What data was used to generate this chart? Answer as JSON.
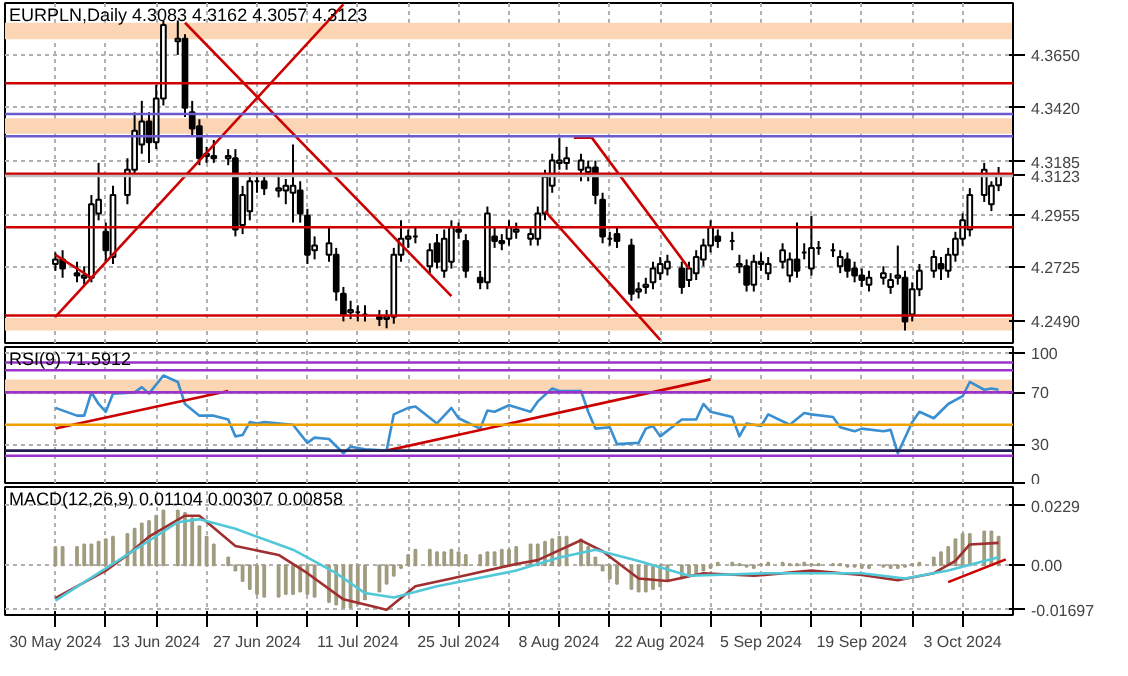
{
  "chart_data": [
    {
      "type": "candlestick",
      "title": "EURPLN,Daily  4.3083 4.3162 4.3057 4.3123",
      "tick_labels": "y",
      "grid": true,
      "x": [
        "2024-05-30",
        "2024-05-31",
        "2024-06-02",
        "2024-06-03",
        "2024-06-04",
        "2024-06-05",
        "2024-06-06",
        "2024-06-07",
        "2024-06-09",
        "2024-06-10",
        "2024-06-11",
        "2024-06-12",
        "2024-06-13",
        "2024-06-14",
        "2024-06-16",
        "2024-06-17",
        "2024-06-18",
        "2024-06-19",
        "2024-06-20",
        "2024-06-21",
        "2024-06-23",
        "2024-06-24",
        "2024-06-25",
        "2024-06-26",
        "2024-06-27",
        "2024-06-28",
        "2024-06-30",
        "2024-07-01",
        "2024-07-02",
        "2024-07-03",
        "2024-07-04",
        "2024-07-05",
        "2024-07-07",
        "2024-07-08",
        "2024-07-09",
        "2024-07-10",
        "2024-07-11",
        "2024-07-12",
        "2024-07-14",
        "2024-07-15",
        "2024-07-16",
        "2024-07-17",
        "2024-07-18",
        "2024-07-19",
        "2024-07-21",
        "2024-07-22",
        "2024-07-23",
        "2024-07-24",
        "2024-07-25",
        "2024-07-26",
        "2024-07-28",
        "2024-07-29",
        "2024-07-30",
        "2024-07-31",
        "2024-08-01",
        "2024-08-02",
        "2024-08-04",
        "2024-08-05",
        "2024-08-06",
        "2024-08-07",
        "2024-08-08",
        "2024-08-09",
        "2024-08-11",
        "2024-08-12",
        "2024-08-13",
        "2024-08-14",
        "2024-08-15",
        "2024-08-16",
        "2024-08-18",
        "2024-08-19",
        "2024-08-20",
        "2024-08-21",
        "2024-08-22",
        "2024-08-23",
        "2024-08-25",
        "2024-08-26",
        "2024-08-27",
        "2024-08-28",
        "2024-08-29",
        "2024-08-30",
        "2024-09-01",
        "2024-09-02",
        "2024-09-03",
        "2024-09-04",
        "2024-09-05",
        "2024-09-06",
        "2024-09-08",
        "2024-09-09",
        "2024-09-10",
        "2024-09-11",
        "2024-09-12",
        "2024-09-13",
        "2024-09-15",
        "2024-09-16",
        "2024-09-17",
        "2024-09-18",
        "2024-09-19",
        "2024-09-20",
        "2024-09-22",
        "2024-09-23",
        "2024-09-24",
        "2024-09-25",
        "2024-09-26",
        "2024-09-27",
        "2024-09-29",
        "2024-09-30",
        "2024-10-01",
        "2024-10-02",
        "2024-10-03",
        "2024-10-04",
        "2024-10-06",
        "2024-10-07",
        "2024-10-08"
      ],
      "ohlc": [
        [
          4.274,
          4.279,
          4.271,
          4.276
        ],
        [
          4.276,
          4.28,
          4.268,
          4.272
        ],
        [
          4.27,
          4.275,
          4.266,
          4.269
        ],
        [
          4.268,
          4.273,
          4.265,
          4.269
        ],
        [
          4.268,
          4.304,
          4.266,
          4.3
        ],
        [
          4.296,
          4.318,
          4.293,
          4.302
        ],
        [
          4.288,
          4.292,
          4.275,
          4.28
        ],
        [
          4.277,
          4.308,
          4.274,
          4.304
        ],
        [
          4.304,
          4.32,
          4.3,
          4.315
        ],
        [
          4.315,
          4.34,
          4.312,
          4.332
        ],
        [
          4.326,
          4.345,
          4.322,
          4.336
        ],
        [
          4.336,
          4.34,
          4.318,
          4.327
        ],
        [
          4.327,
          4.352,
          4.324,
          4.346
        ],
        [
          4.346,
          4.38,
          4.343,
          4.378
        ],
        [
          4.371,
          4.38,
          4.365,
          4.372
        ],
        [
          4.372,
          4.374,
          4.338,
          4.342
        ],
        [
          4.34,
          4.345,
          4.33,
          4.333
        ],
        [
          4.334,
          4.337,
          4.317,
          4.32
        ],
        [
          4.321,
          4.325,
          4.318,
          4.322
        ],
        [
          4.321,
          4.328,
          4.318,
          4.32
        ],
        [
          4.32,
          4.324,
          4.317,
          4.321
        ],
        [
          4.32,
          4.324,
          4.286,
          4.289
        ],
        [
          4.291,
          4.308,
          4.287,
          4.304
        ],
        [
          4.297,
          4.314,
          4.293,
          4.31
        ],
        [
          4.31,
          4.313,
          4.305,
          4.31
        ],
        [
          4.31,
          4.313,
          4.304,
          4.307
        ],
        [
          4.306,
          4.312,
          4.303,
          4.307
        ],
        [
          4.306,
          4.311,
          4.3,
          4.308
        ],
        [
          4.305,
          4.326,
          4.292,
          4.308
        ],
        [
          4.306,
          4.31,
          4.292,
          4.296
        ],
        [
          4.295,
          4.298,
          4.274,
          4.278
        ],
        [
          4.28,
          4.286,
          4.276,
          4.282
        ],
        [
          4.278,
          4.29,
          4.275,
          4.283
        ],
        [
          4.278,
          4.281,
          4.258,
          4.262
        ],
        [
          4.261,
          4.264,
          4.249,
          4.252
        ],
        [
          4.253,
          4.258,
          4.25,
          4.254
        ],
        [
          4.253,
          4.256,
          4.249,
          4.253
        ],
        [
          4.252,
          4.256,
          4.249,
          4.252
        ],
        [
          4.251,
          4.254,
          4.247,
          4.25
        ],
        [
          4.25,
          4.254,
          4.246,
          4.251
        ],
        [
          4.251,
          4.281,
          4.248,
          4.278
        ],
        [
          4.278,
          4.293,
          4.275,
          4.285
        ],
        [
          4.285,
          4.289,
          4.281,
          4.286
        ],
        [
          4.286,
          4.29,
          4.283,
          4.286
        ],
        [
          4.273,
          4.283,
          4.27,
          4.28
        ],
        [
          4.283,
          4.287,
          4.272,
          4.275
        ],
        [
          4.271,
          4.289,
          4.268,
          4.285
        ],
        [
          4.275,
          4.293,
          4.272,
          4.29
        ],
        [
          4.289,
          4.292,
          4.285,
          4.288
        ],
        [
          4.284,
          4.287,
          4.268,
          4.271
        ],
        [
          4.268,
          4.271,
          4.263,
          4.266
        ],
        [
          4.266,
          4.299,
          4.263,
          4.296
        ],
        [
          4.286,
          4.29,
          4.281,
          4.284
        ],
        [
          4.284,
          4.287,
          4.28,
          4.283
        ],
        [
          4.285,
          4.293,
          4.282,
          4.29
        ],
        [
          4.288,
          4.292,
          4.285,
          4.289
        ],
        [
          4.285,
          4.29,
          4.282,
          4.287
        ],
        [
          4.285,
          4.299,
          4.282,
          4.296
        ],
        [
          4.296,
          4.315,
          4.293,
          4.312
        ],
        [
          4.308,
          4.322,
          4.305,
          4.319
        ],
        [
          4.318,
          4.329,
          4.315,
          4.319
        ],
        [
          4.318,
          4.325,
          4.315,
          4.32
        ],
        [
          4.315,
          4.322,
          4.31,
          4.319
        ],
        [
          4.314,
          4.319,
          4.31,
          4.316
        ],
        [
          4.316,
          4.319,
          4.3,
          4.304
        ],
        [
          4.302,
          4.305,
          4.283,
          4.286
        ],
        [
          4.285,
          4.288,
          4.282,
          4.285
        ],
        [
          4.287,
          4.29,
          4.281,
          4.284
        ],
        [
          4.282,
          4.285,
          4.258,
          4.261
        ],
        [
          4.262,
          4.266,
          4.259,
          4.263
        ],
        [
          4.264,
          4.268,
          4.261,
          4.265
        ],
        [
          4.266,
          4.275,
          4.263,
          4.272
        ],
        [
          4.27,
          4.277,
          4.267,
          4.274
        ],
        [
          4.272,
          4.278,
          4.269,
          4.275
        ],
        [
          4.272,
          4.275,
          4.261,
          4.264
        ],
        [
          4.267,
          4.275,
          4.264,
          4.272
        ],
        [
          4.27,
          4.28,
          4.267,
          4.277
        ],
        [
          4.276,
          4.285,
          4.273,
          4.282
        ],
        [
          4.282,
          4.293,
          4.279,
          4.29
        ],
        [
          4.286,
          4.289,
          4.281,
          4.284
        ],
        [
          4.284,
          4.288,
          4.28,
          4.284
        ],
        [
          4.273,
          4.278,
          4.27,
          4.274
        ],
        [
          4.273,
          4.276,
          4.262,
          4.265
        ],
        [
          4.265,
          4.278,
          4.262,
          4.275
        ],
        [
          4.274,
          4.279,
          4.271,
          4.275
        ],
        [
          4.27,
          4.277,
          4.267,
          4.274
        ],
        [
          4.275,
          4.283,
          4.272,
          4.28
        ],
        [
          4.269,
          4.279,
          4.266,
          4.276
        ],
        [
          4.276,
          4.292,
          4.268,
          4.271
        ],
        [
          4.279,
          4.283,
          4.276,
          4.279
        ],
        [
          4.272,
          4.295,
          4.269,
          4.281
        ],
        [
          4.281,
          4.284,
          4.278,
          4.281
        ],
        [
          4.28,
          4.283,
          4.277,
          4.28
        ],
        [
          4.273,
          4.28,
          4.27,
          4.277
        ],
        [
          4.276,
          4.279,
          4.268,
          4.271
        ],
        [
          4.272,
          4.275,
          4.266,
          4.269
        ],
        [
          4.269,
          4.272,
          4.264,
          4.267
        ],
        [
          4.265,
          4.271,
          4.262,
          4.268
        ],
        [
          4.268,
          4.273,
          4.265,
          4.27
        ],
        [
          4.264,
          4.27,
          4.261,
          4.267
        ],
        [
          4.268,
          4.282,
          4.265,
          4.269
        ],
        [
          4.268,
          4.271,
          4.245,
          4.249
        ],
        [
          4.252,
          4.266,
          4.249,
          4.263
        ],
        [
          4.263,
          4.274,
          4.26,
          4.271
        ],
        [
          4.271,
          4.28,
          4.268,
          4.277
        ],
        [
          4.274,
          4.277,
          4.267,
          4.272
        ],
        [
          4.271,
          4.281,
          4.268,
          4.278
        ],
        [
          4.278,
          4.288,
          4.275,
          4.285
        ],
        [
          4.285,
          4.296,
          4.282,
          4.293
        ],
        [
          4.289,
          4.307,
          4.286,
          4.304
        ],
        [
          4.304,
          4.318,
          4.301,
          4.315
        ],
        [
          4.3,
          4.31,
          4.297,
          4.308
        ],
        [
          4.3083,
          4.3162,
          4.3057,
          4.3123
        ]
      ],
      "series": [
        {
          "type": "line",
          "color": "#cc0000",
          "x": [
            "2024-05-30",
            "2024-07-09"
          ],
          "values": [
            4.251,
            4.387
          ]
        },
        {
          "type": "line",
          "color": "#cc0000",
          "x": [
            "2024-06-17",
            "2024-07-24"
          ],
          "values": [
            4.379,
            4.26
          ]
        },
        {
          "type": "line",
          "color": "#cc0000",
          "x": [
            "2024-05-30",
            "2024-06-04"
          ],
          "values": [
            4.278,
            4.268
          ]
        },
        {
          "type": "line",
          "color": "#cc0000",
          "x": [
            "2024-08-10",
            "2024-08-12T12:00",
            "2024-08-26"
          ],
          "values": [
            4.329,
            4.329,
            4.272
          ]
        },
        {
          "type": "line",
          "color": "#cc0000",
          "x": [
            "2024-08-06",
            "2024-08-22"
          ],
          "values": [
            4.297,
            4.241
          ]
        }
      ],
      "xlim": [
        "2024-05-23",
        "2024-10-10"
      ],
      "xticks": [
        "2024-05-30",
        "2024-06-06",
        "2024-06-13",
        "2024-06-20",
        "2024-06-27",
        "2024-07-04",
        "2024-07-11",
        "2024-07-18",
        "2024-07-25",
        "2024-08-01",
        "2024-08-08",
        "2024-08-15",
        "2024-08-22",
        "2024-08-29",
        "2024-09-05",
        "2024-09-12",
        "2024-09-19",
        "2024-09-26",
        "2024-10-03"
      ],
      "ylim": [
        4.2396,
        4.3876
      ],
      "yticks": [
        {
          "value": 4.249,
          "label": "4.2490"
        },
        {
          "value": 4.2725,
          "label": "4.2725"
        },
        {
          "value": 4.2955,
          "label": "4.2955"
        },
        {
          "value": 4.3185,
          "label": "4.3185"
        },
        {
          "value": 4.342,
          "label": "4.3420"
        },
        {
          "value": 4.365,
          "label": "4.3650"
        }
      ],
      "ref_lines": [
        {
          "axis": "y",
          "value": 4.3527,
          "color": "#cc0000"
        },
        {
          "axis": "y",
          "value": 4.3393,
          "color": "#6a5acd"
        },
        {
          "axis": "y",
          "value": 4.3296,
          "color": "#6a5acd"
        },
        {
          "axis": "y",
          "value": 4.3132,
          "color": "#cc0000"
        },
        {
          "axis": "y",
          "value": 4.29,
          "color": "#cc0000"
        },
        {
          "axis": "y",
          "value": 4.2516,
          "color": "#cc0000"
        },
        {
          "axis": "y",
          "value": 4.3123,
          "label": "4.3123",
          "color": "#c0c0c0"
        }
      ],
      "bands": [
        {
          "axis": "y",
          "from": 4.3718,
          "to": 4.379,
          "color": "#fcd5b4"
        },
        {
          "axis": "y",
          "from": 4.3307,
          "to": 4.3374,
          "color": "#fcd5b4"
        },
        {
          "axis": "y",
          "from": 4.245,
          "to": 4.2505,
          "color": "#fcd5b4"
        }
      ]
    },
    {
      "type": "line",
      "title": "RSI(9) 71.5912",
      "tick_labels": "y",
      "grid": true,
      "series": [
        {
          "color": "#3a8fd0",
          "x": [
            "2024-05-30",
            "2024-06-02",
            "2024-06-03",
            "2024-06-04",
            "2024-06-05",
            "2024-06-06",
            "2024-06-07",
            "2024-06-10",
            "2024-06-11",
            "2024-06-12",
            "2024-06-14",
            "2024-06-16",
            "2024-06-17",
            "2024-06-19",
            "2024-06-21",
            "2024-06-23",
            "2024-06-24",
            "2024-06-25",
            "2024-06-26",
            "2024-06-27",
            "2024-06-28",
            "2024-07-02",
            "2024-07-04",
            "2024-07-05",
            "2024-07-07",
            "2024-07-09",
            "2024-07-10",
            "2024-07-12",
            "2024-07-15",
            "2024-07-16",
            "2024-07-18",
            "2024-07-19",
            "2024-07-22",
            "2024-07-24",
            "2024-07-25",
            "2024-07-28",
            "2024-07-29",
            "2024-07-30",
            "2024-08-01",
            "2024-08-04",
            "2024-08-05",
            "2024-08-07",
            "2024-08-08",
            "2024-08-11",
            "2024-08-12",
            "2024-08-13",
            "2024-08-15",
            "2024-08-16",
            "2024-08-19",
            "2024-08-20",
            "2024-08-21",
            "2024-08-22",
            "2024-08-25",
            "2024-08-27",
            "2024-08-28",
            "2024-08-29",
            "2024-09-01",
            "2024-09-02",
            "2024-09-03",
            "2024-09-05",
            "2024-09-06",
            "2024-09-09",
            "2024-09-11",
            "2024-09-12",
            "2024-09-15",
            "2024-09-16",
            "2024-09-18",
            "2024-09-19",
            "2024-09-22",
            "2024-09-23",
            "2024-09-24",
            "2024-09-26",
            "2024-09-27",
            "2024-09-29",
            "2024-10-01",
            "2024-10-03",
            "2024-10-04",
            "2024-10-06",
            "2024-10-07",
            "2024-10-08"
          ],
          "values": [
            58,
            52,
            52,
            70,
            61,
            55,
            69,
            70,
            74,
            69,
            83,
            78,
            61,
            52,
            52,
            49,
            36,
            37,
            47,
            46,
            47,
            45,
            31,
            35,
            34,
            23,
            28,
            26,
            25,
            53,
            58,
            59,
            46,
            58,
            50,
            42,
            56,
            55,
            60,
            55,
            63,
            73,
            71,
            71,
            55,
            42,
            43,
            30,
            31,
            42,
            44,
            36,
            49,
            49,
            61,
            55,
            51,
            36,
            46,
            44,
            53,
            45,
            54,
            53,
            51,
            43,
            40,
            42,
            40,
            41,
            23,
            47,
            55,
            50,
            61,
            67,
            78,
            72,
            73,
            72
          ]
        },
        {
          "color": "#cc0000",
          "x": [
            "2024-05-30",
            "2024-06-23"
          ],
          "values": [
            42,
            71
          ]
        },
        {
          "color": "#cc0000",
          "x": [
            "2024-07-15",
            "2024-08-29"
          ],
          "values": [
            25,
            80
          ]
        }
      ],
      "xlim": [
        "2024-05-23",
        "2024-10-10"
      ],
      "xticks": [
        "2024-05-30",
        "2024-06-06",
        "2024-06-13",
        "2024-06-20",
        "2024-06-27",
        "2024-07-04",
        "2024-07-11",
        "2024-07-18",
        "2024-07-25",
        "2024-08-01",
        "2024-08-08",
        "2024-08-15",
        "2024-08-22",
        "2024-08-29",
        "2024-09-05",
        "2024-09-12",
        "2024-09-19",
        "2024-09-26",
        "2024-10-03"
      ],
      "ylim": [
        0,
        105
      ],
      "yticks": [
        0,
        30,
        70,
        100
      ],
      "ref_lines": [
        {
          "axis": "y",
          "value": 93,
          "color": "#9933cc"
        },
        {
          "axis": "y",
          "value": 87,
          "color": "#9933cc"
        },
        {
          "axis": "y",
          "value": 70,
          "color": "#9933cc"
        },
        {
          "axis": "y",
          "value": 45,
          "color": "#f0a000"
        },
        {
          "axis": "y",
          "value": 25,
          "color": "#202050"
        },
        {
          "axis": "y",
          "value": 21,
          "color": "#9933cc"
        }
      ],
      "bands": [
        {
          "axis": "y",
          "from": 71,
          "to": 80,
          "color": "#fcd5b4"
        }
      ]
    },
    {
      "type": "bar",
      "title": "MACD(12,26,9) 0.01104 0.00307 0.00858",
      "grid": true,
      "x": [
        "2024-05-30",
        "2024-05-31",
        "2024-06-02",
        "2024-06-03",
        "2024-06-04",
        "2024-06-05",
        "2024-06-06",
        "2024-06-07",
        "2024-06-09",
        "2024-06-10",
        "2024-06-11",
        "2024-06-12",
        "2024-06-13",
        "2024-06-14",
        "2024-06-16",
        "2024-06-17",
        "2024-06-18",
        "2024-06-19",
        "2024-06-20",
        "2024-06-21",
        "2024-06-23",
        "2024-06-24",
        "2024-06-25",
        "2024-06-26",
        "2024-06-27",
        "2024-06-28",
        "2024-06-30",
        "2024-07-01",
        "2024-07-02",
        "2024-07-03",
        "2024-07-04",
        "2024-07-05",
        "2024-07-07",
        "2024-07-08",
        "2024-07-09",
        "2024-07-10",
        "2024-07-11",
        "2024-07-12",
        "2024-07-14",
        "2024-07-15",
        "2024-07-16",
        "2024-07-17",
        "2024-07-18",
        "2024-07-19",
        "2024-07-21",
        "2024-07-22",
        "2024-07-23",
        "2024-07-24",
        "2024-07-25",
        "2024-07-26",
        "2024-07-28",
        "2024-07-29",
        "2024-07-30",
        "2024-07-31",
        "2024-08-01",
        "2024-08-02",
        "2024-08-04",
        "2024-08-05",
        "2024-08-06",
        "2024-08-07",
        "2024-08-08",
        "2024-08-09",
        "2024-08-11",
        "2024-08-12",
        "2024-08-13",
        "2024-08-14",
        "2024-08-15",
        "2024-08-16",
        "2024-08-18",
        "2024-08-19",
        "2024-08-20",
        "2024-08-21",
        "2024-08-22",
        "2024-08-23",
        "2024-08-25",
        "2024-08-26",
        "2024-08-27",
        "2024-08-28",
        "2024-08-29",
        "2024-08-30",
        "2024-09-01",
        "2024-09-02",
        "2024-09-03",
        "2024-09-04",
        "2024-09-05",
        "2024-09-06",
        "2024-09-08",
        "2024-09-09",
        "2024-09-10",
        "2024-09-11",
        "2024-09-12",
        "2024-09-13",
        "2024-09-15",
        "2024-09-16",
        "2024-09-17",
        "2024-09-18",
        "2024-09-19",
        "2024-09-20",
        "2024-09-22",
        "2024-09-23",
        "2024-09-24",
        "2024-09-25",
        "2024-09-26",
        "2024-09-27",
        "2024-09-29",
        "2024-09-30",
        "2024-10-01",
        "2024-10-02",
        "2024-10-03",
        "2024-10-04",
        "2024-10-06",
        "2024-10-07",
        "2024-10-08"
      ],
      "series": [
        {
          "type": "bar",
          "color": "#a09c80",
          "values": [
            0.007,
            0.007,
            0.007,
            0.008,
            0.008,
            0.009,
            0.01,
            0.011,
            0.012,
            0.014,
            0.016,
            0.017,
            0.019,
            0.021,
            0.021,
            0.02,
            0.018,
            0.015,
            0.011,
            0.008,
            0.003,
            -0.002,
            -0.006,
            -0.009,
            -0.011,
            -0.012,
            -0.012,
            -0.011,
            -0.011,
            -0.01,
            -0.011,
            -0.012,
            -0.014,
            -0.015,
            -0.016,
            -0.016,
            -0.015,
            -0.013,
            -0.01,
            -0.007,
            -0.004,
            -0.001,
            0.004,
            0.006,
            0.006,
            0.005,
            0.005,
            0.006,
            0.005,
            0.004,
            0.004,
            0.005,
            0.005,
            0.006,
            0.006,
            0.007,
            0.008,
            0.008,
            0.009,
            0.01,
            0.011,
            0.011,
            0.01,
            0.007,
            0.003,
            -0.002,
            -0.005,
            -0.007,
            -0.009,
            -0.01,
            -0.01,
            -0.009,
            -0.008,
            -0.006,
            -0.005,
            -0.004,
            -0.003,
            -0.002,
            -0.001,
            0.001,
            0.001,
            0.0005,
            -0.0005,
            -0.001,
            0.0005,
            0.001,
            0.001,
            0.0005,
            0.0005,
            0.001,
            0.0005,
            0.0005,
            0.0005,
            0.0005,
            -0.0005,
            -0.0005,
            -0.001,
            -0.001,
            -0.0005,
            -0.001,
            -0.001,
            -0.0005,
            0.0005,
            0.001,
            0.003,
            0.005,
            0.007,
            0.01,
            0.012,
            0.012,
            0.013,
            0.013,
            0.011
          ]
        },
        {
          "type": "line",
          "color": "#a03030",
          "x": [
            "2024-05-30",
            "2024-06-06",
            "2024-06-09",
            "2024-06-12",
            "2024-06-17",
            "2024-06-19",
            "2024-06-24",
            "2024-06-30",
            "2024-07-04",
            "2024-07-09",
            "2024-07-15",
            "2024-07-19",
            "2024-07-24",
            "2024-08-02",
            "2024-08-05",
            "2024-08-11",
            "2024-08-14",
            "2024-08-19",
            "2024-08-23",
            "2024-08-28",
            "2024-09-04",
            "2024-09-12",
            "2024-09-19",
            "2024-09-24",
            "2024-09-29",
            "2024-10-02",
            "2024-10-04",
            "2024-10-08"
          ],
          "values": [
            -0.0125,
            -0.002,
            0.004,
            0.011,
            0.019,
            0.019,
            0.0074,
            0.004,
            -0.003,
            -0.013,
            -0.017,
            -0.008,
            -0.005,
            0.0005,
            0.002,
            0.0096,
            0.0054,
            -0.005,
            -0.006,
            -0.003,
            -0.004,
            -0.002,
            -0.0037,
            -0.0057,
            -0.003,
            0.0017,
            0.008,
            0.0086
          ]
        },
        {
          "type": "line",
          "color": "#50c8d8",
          "x": [
            "2024-05-30",
            "2024-06-16",
            "2024-06-19",
            "2024-06-24",
            "2024-07-02",
            "2024-07-08",
            "2024-07-12",
            "2024-07-16",
            "2024-07-22",
            "2024-08-02",
            "2024-08-08",
            "2024-08-13",
            "2024-08-19",
            "2024-08-26",
            "2024-09-06",
            "2024-09-19",
            "2024-09-25",
            "2024-10-01",
            "2024-10-08"
          ],
          "values": [
            -0.0135,
            0.0165,
            0.0177,
            0.014,
            0.006,
            -0.003,
            -0.0106,
            -0.0123,
            -0.008,
            -0.002,
            0.003,
            0.006,
            0.0017,
            -0.004,
            -0.003,
            -0.003,
            -0.005,
            -0.002,
            0.0031
          ]
        },
        {
          "type": "line",
          "color": "#cc0000",
          "x": [
            "2024-10-01",
            "2024-10-09"
          ],
          "values": [
            -0.0064,
            0.0023
          ]
        }
      ],
      "xlim": [
        "2024-05-23",
        "2024-10-10"
      ],
      "xticks": [
        {
          "value": "2024-05-30",
          "label": "30 May 2024"
        },
        {
          "value": "2024-06-06",
          "label": null
        },
        {
          "value": "2024-06-13",
          "label": "13 Jun 2024"
        },
        {
          "value": "2024-06-20",
          "label": null
        },
        {
          "value": "2024-06-27",
          "label": "27 Jun 2024"
        },
        {
          "value": "2024-07-04",
          "label": null
        },
        {
          "value": "2024-07-11",
          "label": "11 Jul 2024"
        },
        {
          "value": "2024-07-18",
          "label": null
        },
        {
          "value": "2024-07-25",
          "label": "25 Jul 2024"
        },
        {
          "value": "2024-08-01",
          "label": null
        },
        {
          "value": "2024-08-08",
          "label": "8 Aug 2024"
        },
        {
          "value": "2024-08-15",
          "label": null
        },
        {
          "value": "2024-08-22",
          "label": "22 Aug 2024"
        },
        {
          "value": "2024-08-29",
          "label": null
        },
        {
          "value": "2024-09-05",
          "label": "5 Sep 2024"
        },
        {
          "value": "2024-09-12",
          "label": null
        },
        {
          "value": "2024-09-19",
          "label": "19 Sep 2024"
        },
        {
          "value": "2024-09-26",
          "label": null
        },
        {
          "value": "2024-10-03",
          "label": "3 Oct 2024"
        }
      ],
      "ylim": [
        -0.019,
        0.03
      ],
      "yticks": [
        {
          "value": -0.01697,
          "label": "-0.01697"
        },
        {
          "value": 0,
          "label": "0.00"
        },
        {
          "value": 0.0229,
          "label": "0.0229"
        }
      ]
    }
  ]
}
